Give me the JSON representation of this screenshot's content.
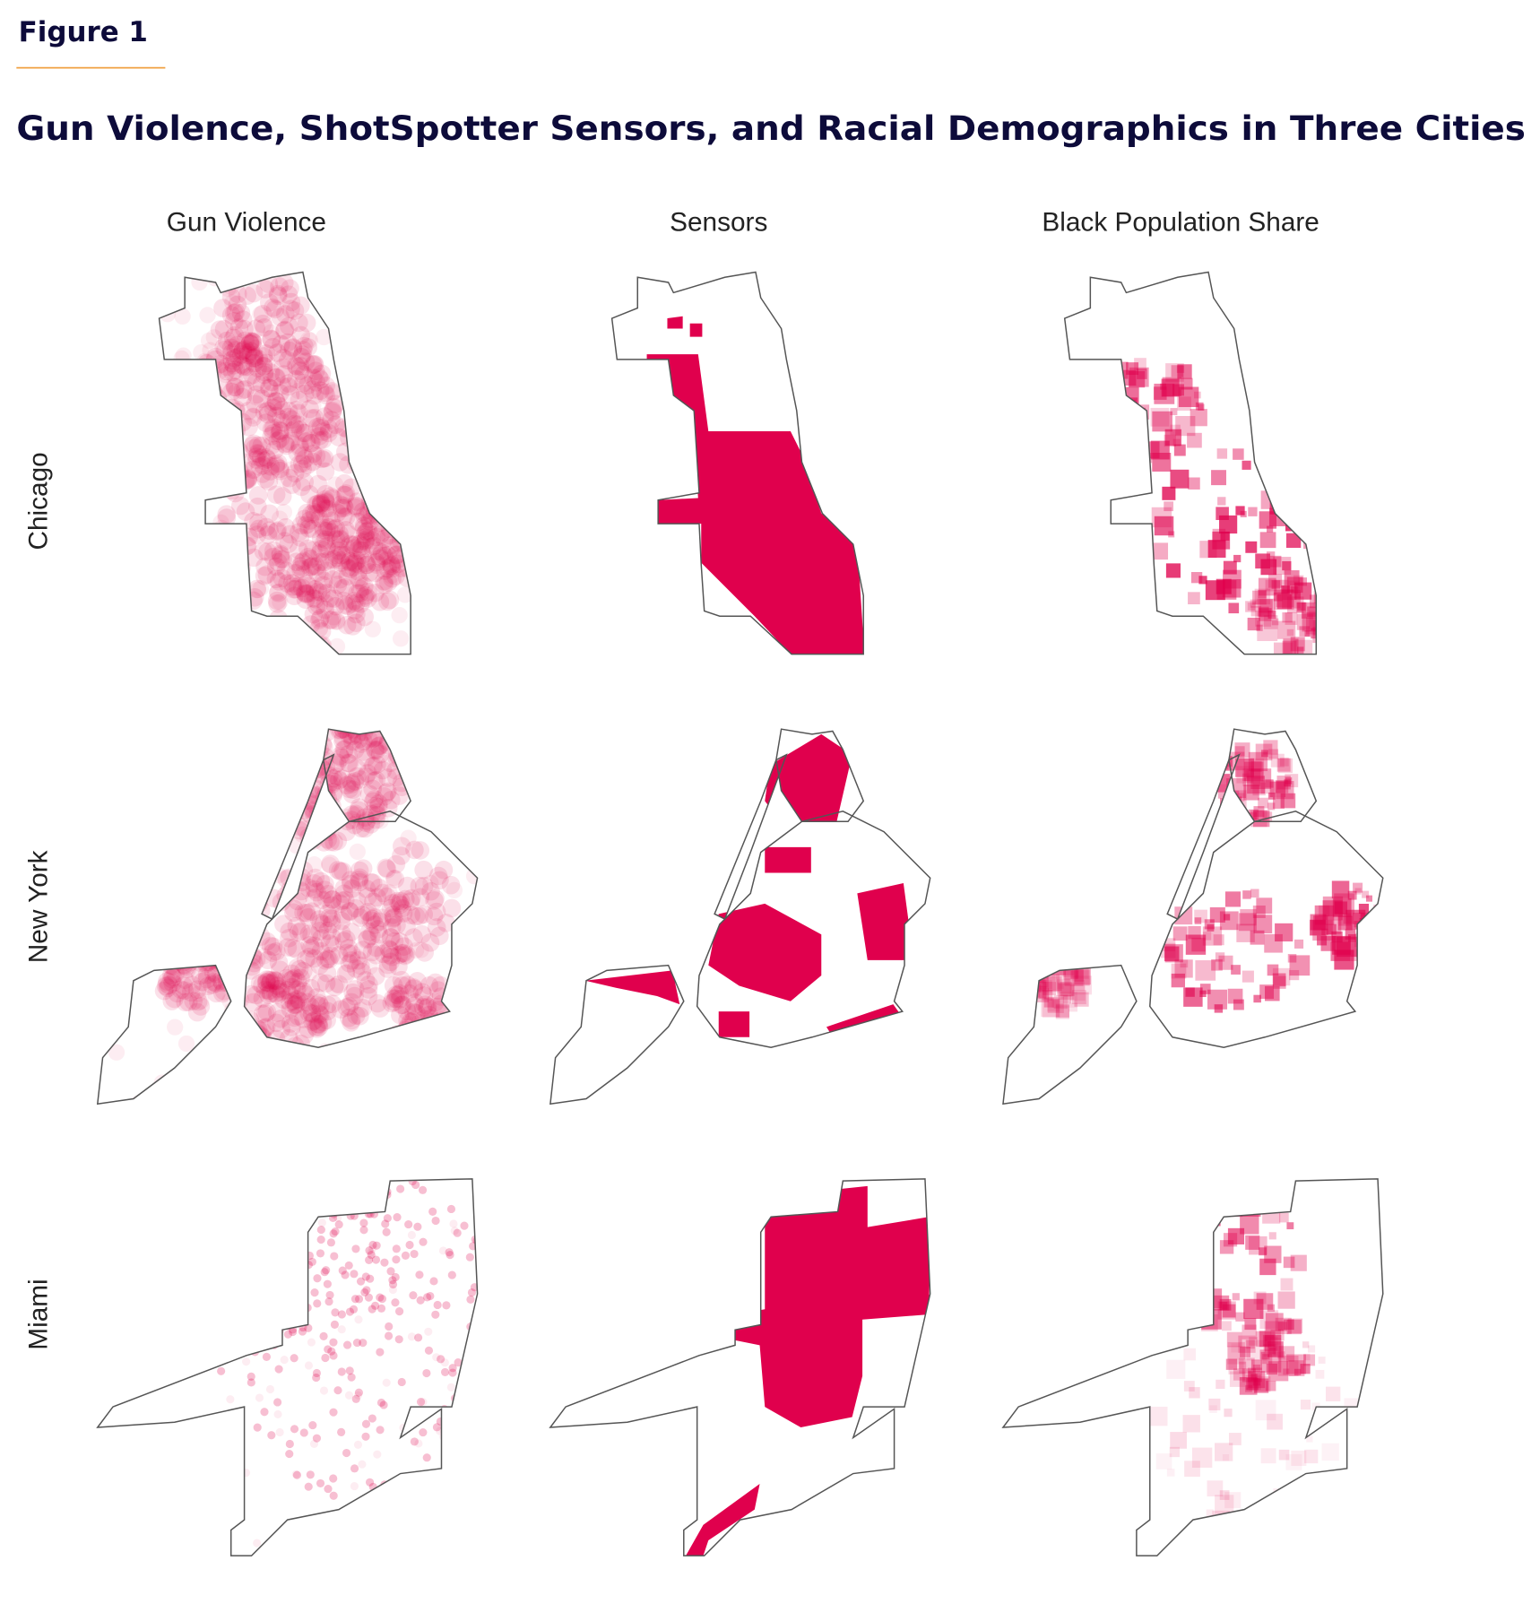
{
  "figure_label": "Figure 1",
  "title": "Gun Violence, ShotSpotter Sensors, and Racial Demographics in Three Cities",
  "columns": [
    "Gun Violence",
    "Sensors",
    "Black Population Share"
  ],
  "rows": [
    "Chicago",
    "New York",
    "Miami"
  ],
  "colors": {
    "accent_rule": "#f0a040",
    "title_text": "#0d0b3a",
    "map_fill": "#e0004d",
    "outline": "#555555"
  }
}
